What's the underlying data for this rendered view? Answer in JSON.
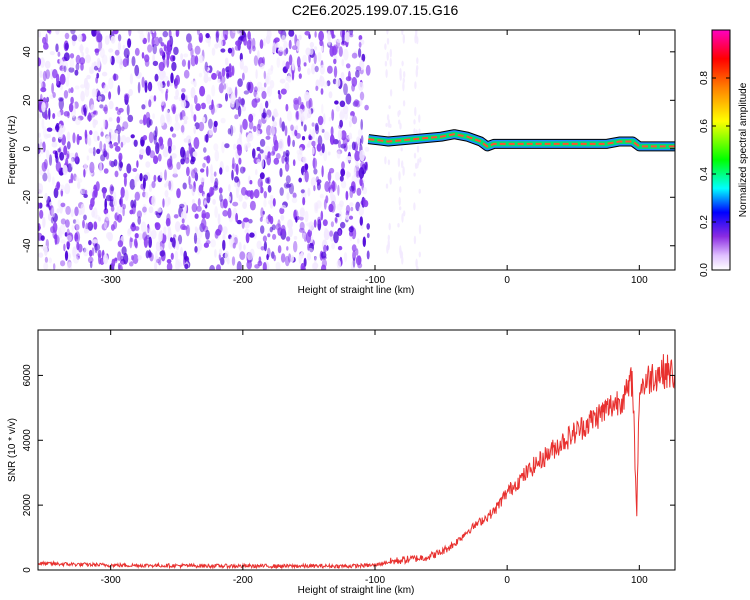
{
  "title": "C2E6.2025.199.07.15.G16",
  "colors": {
    "heat_low": "#f3eaff",
    "heat_mid": "#8a3cf0",
    "heat_high": "#4a00d8",
    "snr_line": "#e8312f"
  },
  "chart_data": [
    {
      "type": "heatmap",
      "xlabel": "Height of straight line (km)",
      "ylabel": "Frequency (Hz)",
      "xlim": [
        -355,
        127
      ],
      "ylim": [
        -50,
        49
      ],
      "x_ticks": [
        -300,
        -200,
        -100,
        0,
        100
      ],
      "y_ticks": [
        -40,
        -20,
        0,
        20,
        40
      ],
      "x_tick_labels": [
        "-300",
        "-200",
        "-100",
        "0",
        "100"
      ],
      "y_tick_labels": [
        "-40",
        "-20",
        "0",
        "20",
        "40"
      ],
      "noise_region": [
        -355,
        -105
      ],
      "signal_line": {
        "x": [
          -105,
          -90,
          -70,
          -50,
          -40,
          -30,
          -20,
          -15,
          -10,
          0,
          20,
          40,
          60,
          75,
          85,
          95,
          100,
          110,
          127
        ],
        "y": [
          4,
          3,
          4,
          5,
          6,
          5,
          3,
          1,
          2,
          2,
          2,
          2,
          2,
          2,
          3,
          3,
          1,
          1,
          1
        ]
      },
      "colorbar": {
        "label": "Normalized spectral amplitude",
        "range": [
          0,
          1
        ],
        "ticks": [
          0.0,
          0.2,
          0.4,
          0.6,
          0.8
        ],
        "tick_labels": [
          "0.0",
          "0.2",
          "0.4",
          "0.6",
          "0.8"
        ]
      },
      "grid": false
    },
    {
      "type": "line",
      "xlabel": "Height of straight line (km)",
      "ylabel": "SNR (10 * v/v)",
      "xlim": [
        -355,
        127
      ],
      "ylim": [
        0,
        7400
      ],
      "x_ticks": [
        -300,
        -200,
        -100,
        0,
        100
      ],
      "y_ticks": [
        0,
        2000,
        4000,
        6000
      ],
      "x_tick_labels": [
        "-300",
        "-200",
        "-100",
        "0",
        "100"
      ],
      "y_tick_labels": [
        "0",
        "2000",
        "4000",
        "6000"
      ],
      "x": [
        -355,
        -300,
        -200,
        -120,
        -100,
        -90,
        -80,
        -70,
        -60,
        -50,
        -40,
        -30,
        -20,
        -10,
        0,
        20,
        40,
        60,
        80,
        90,
        95,
        98,
        100,
        110,
        120,
        127
      ],
      "y": [
        200,
        150,
        120,
        120,
        150,
        250,
        300,
        350,
        400,
        550,
        800,
        1200,
        1500,
        1800,
        2400,
        3200,
        3900,
        4500,
        5100,
        5400,
        5900,
        1600,
        5600,
        6000,
        6150,
        6000
      ],
      "grid": false
    }
  ]
}
